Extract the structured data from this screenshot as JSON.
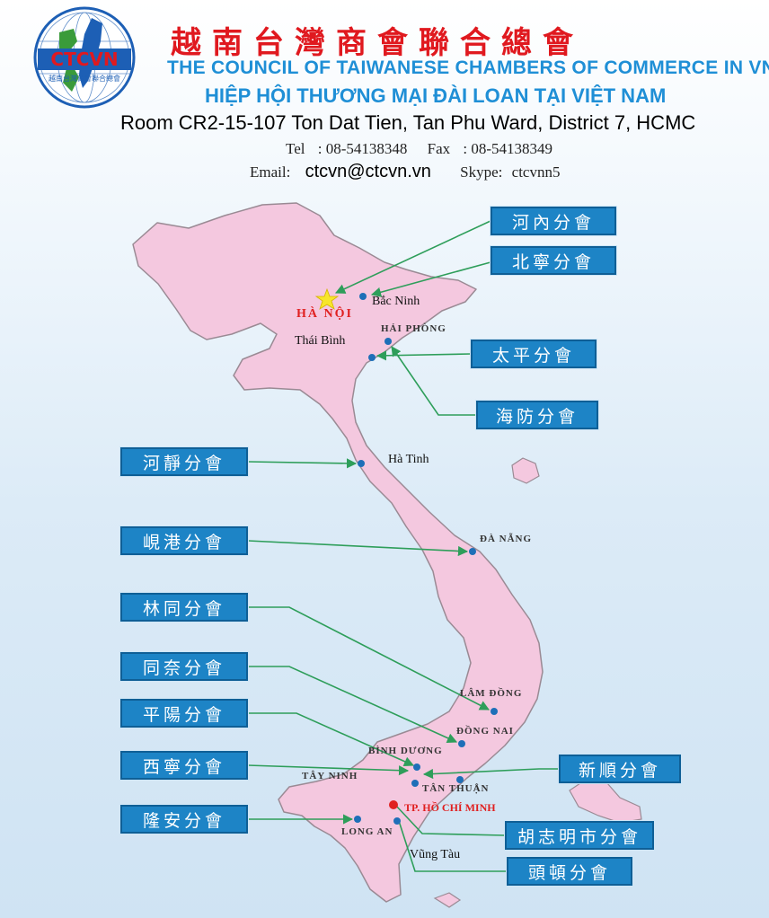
{
  "header": {
    "logo_text": "CTCVN",
    "logo_subtext": "越南台灣商會聯合總會",
    "title_cn": "越南台灣商會聯合總會",
    "title_en": "THE COUNCIL OF TAIWANESE CHAMBERS OF COMMERCE IN VN",
    "title_vn": "HIỆP HỘI THƯƠNG MẠI ĐÀI LOAN TẠI VIỆT NAM",
    "address": "Room CR2-15-107 Ton Dat Tien, Tan Phu Ward, District 7, HCMC",
    "tel_label": "Tel",
    "tel_value": ": 08-54138348",
    "fax_label": "Fax",
    "fax_value": ": 08-54138349",
    "email_label": "Email:",
    "email_value": "ctcvn@ctcvn.vn",
    "skype_label": "Skype:",
    "skype_value": "ctcvnn5"
  },
  "branches": {
    "hanoi": "河內分會",
    "bacninh": "北寧分會",
    "thaibinh": "太平分會",
    "haiphong": "海防分會",
    "hatinh": "河靜分會",
    "danang": "峴港分會",
    "lamdong": "林同分會",
    "dongnai": "同奈分會",
    "binhduong": "平陽分會",
    "tayninh": "西寧分會",
    "longan": "隆安分會",
    "tanthuan": "新順分會",
    "hcmc": "胡志明市分會",
    "vungtau": "頭頓分會"
  },
  "cities": {
    "hanoi": "HÀ NỘI",
    "bacninh": "Bắc Ninh",
    "haiphong": "HẢI PHÒNG",
    "thaibinh": "Thái Bình",
    "hatinh": "Hà Tinh",
    "danang": "ĐÀ NẴNG",
    "lamdong": "LÂM ĐỒNG",
    "dongnai": "ĐỒNG NAI",
    "binhduong": "BÌNH DƯƠNG",
    "tayninh": "TÂY NINH",
    "tanthuan": "TÂN THUẬN",
    "hcmc": "TP. HỒ CHÍ MINH",
    "longan": "LONG AN",
    "vungtau": "Vũng Tàu"
  },
  "colors": {
    "land": "#f4c8df",
    "coast": "#9a8a94",
    "branch_box": "#1d84c6",
    "arrow": "#2e9e5a",
    "dot": "#1e6fb8",
    "title_red": "#e0191f",
    "title_blue": "#1f8fd6"
  }
}
